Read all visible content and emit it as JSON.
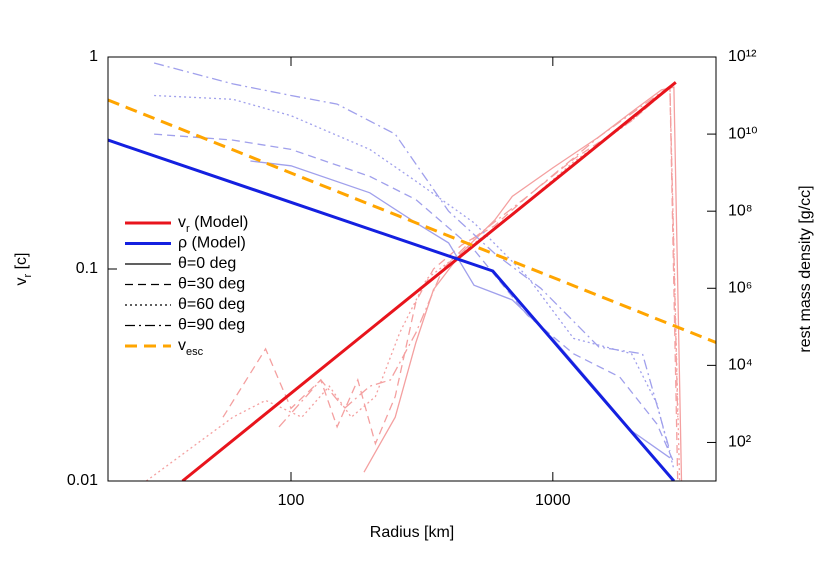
{
  "chart_data": {
    "type": "line",
    "xlabel": "Radius [km]",
    "ylabel": "v",
    "ylabel_sub": "r",
    "ylabel_suffix": " [c]",
    "y2label": "rest mass density [g/cc]",
    "xscale": "log",
    "yscale": "log",
    "y2scale": "log",
    "xlim": [
      20,
      4200
    ],
    "xticks": [
      100,
      1000
    ],
    "ylim": [
      0.01,
      1
    ],
    "yticks": [
      0.01,
      0.1,
      1
    ],
    "y2lim": [
      10,
      1000000000000.0
    ],
    "y2ticks": [
      {
        "value": 100,
        "label": "10²"
      },
      {
        "value": 10000,
        "label": "10⁴"
      },
      {
        "value": 1000000,
        "label": "10⁶"
      },
      {
        "value": 100000000,
        "label": "10⁸"
      },
      {
        "value": 10000000000,
        "label": "10¹⁰"
      },
      {
        "value": 1000000000000,
        "label": "10¹²"
      }
    ],
    "legend": "left",
    "line_styles": [
      {
        "name": "θ=0 deg",
        "dash": "none"
      },
      {
        "name": "θ=30 deg",
        "dash": "8,5"
      },
      {
        "name": "θ=60 deg",
        "dash": "2,3"
      },
      {
        "name": "θ=90 deg",
        "dash": "10,4,2,4"
      }
    ],
    "series": [
      {
        "name": "v",
        "name_sub": "r",
        "name_suffix": " (Model)",
        "color": "#e8141c",
        "width": 3,
        "dash": "none",
        "axis": "y",
        "x": [
          38.5,
          2950
        ],
        "values": [
          0.01,
          0.76
        ]
      },
      {
        "name": "ρ (Model)",
        "color": "#1420e0",
        "width": 3,
        "dash": "none",
        "axis": "y2",
        "x": [
          20,
          590,
          2900
        ],
        "values": [
          7000000000,
          2800000,
          10
        ]
      },
      {
        "color": "#f4a0a0",
        "width": 1.3,
        "style": 0,
        "axis": "y",
        "x": [
          190,
          250,
          300,
          350,
          450,
          600,
          700,
          1000,
          1500,
          2000,
          2600,
          2900,
          3100
        ],
        "values": [
          0.011,
          0.02,
          0.045,
          0.08,
          0.12,
          0.17,
          0.22,
          0.3,
          0.42,
          0.55,
          0.7,
          0.72,
          0.01
        ]
      },
      {
        "color": "#f4a0a0",
        "width": 1.3,
        "style": 1,
        "axis": "y",
        "x": [
          55,
          80,
          100,
          130,
          150,
          180,
          210,
          250,
          300,
          350,
          450,
          600,
          800,
          1200,
          2000,
          2800,
          3000
        ],
        "values": [
          0.02,
          0.042,
          0.022,
          0.03,
          0.018,
          0.03,
          0.015,
          0.025,
          0.07,
          0.1,
          0.13,
          0.16,
          0.22,
          0.33,
          0.5,
          0.72,
          0.01
        ]
      },
      {
        "color": "#f4a0a0",
        "width": 1.3,
        "style": 2,
        "axis": "y",
        "x": [
          28,
          60,
          80,
          110,
          140,
          170,
          210,
          260,
          330,
          450,
          700,
          1200,
          2000,
          2800,
          3050
        ],
        "values": [
          0.01,
          0.02,
          0.024,
          0.02,
          0.028,
          0.02,
          0.025,
          0.05,
          0.09,
          0.12,
          0.18,
          0.32,
          0.5,
          0.72,
          0.01
        ]
      },
      {
        "color": "#f4a0a0",
        "width": 1.3,
        "style": 3,
        "axis": "y",
        "x": [
          90,
          130,
          160,
          200,
          240,
          300,
          380,
          500,
          800,
          1500,
          2800,
          3000
        ],
        "values": [
          0.018,
          0.03,
          0.022,
          0.028,
          0.03,
          0.05,
          0.1,
          0.14,
          0.22,
          0.42,
          0.73,
          0.02
        ]
      },
      {
        "color": "#a0a0ec",
        "width": 1.3,
        "style": 0,
        "axis": "y2",
        "x": [
          70,
          100,
          200,
          300,
          400,
          500,
          700,
          1000,
          1500,
          2000,
          2800
        ],
        "values": [
          2000000000,
          1500000000,
          300000000,
          50000000,
          15000000,
          1200000,
          500000,
          50000,
          2000,
          200,
          40
        ]
      },
      {
        "color": "#a0a0ec",
        "width": 1.3,
        "style": 1,
        "axis": "y2",
        "x": [
          30,
          60,
          100,
          200,
          300,
          500,
          800,
          1200,
          1800,
          2500,
          2900
        ],
        "values": [
          10000000000,
          7000000000,
          4000000000,
          800000000,
          200000000,
          10000000,
          200000,
          20000,
          5000,
          300,
          30
        ]
      },
      {
        "color": "#a0a0ec",
        "width": 1.3,
        "style": 2,
        "axis": "y2",
        "x": [
          30,
          60,
          100,
          200,
          300,
          500,
          800,
          1200,
          2000,
          2500,
          2900
        ],
        "values": [
          100000000000,
          80000000000,
          30000000000,
          4000000000,
          600000000,
          50000000,
          2000000,
          50000,
          20000,
          1000,
          20
        ]
      },
      {
        "color": "#a0a0ec",
        "width": 1.3,
        "style": 3,
        "axis": "y2",
        "x": [
          30,
          60,
          100,
          150,
          250,
          400,
          600,
          900,
          1500,
          2200,
          2800
        ],
        "values": [
          700000000000,
          200000000000,
          100000000000,
          60000000000,
          10000000000,
          100000000,
          8000000,
          1000000,
          30000,
          20000,
          60
        ]
      },
      {
        "name": "v",
        "name_sub": "esc",
        "color": "#ffa500",
        "width": 3,
        "dash": "12,7",
        "axis": "y",
        "x": [
          20,
          4200
        ],
        "values": [
          0.627,
          0.045
        ]
      }
    ]
  }
}
